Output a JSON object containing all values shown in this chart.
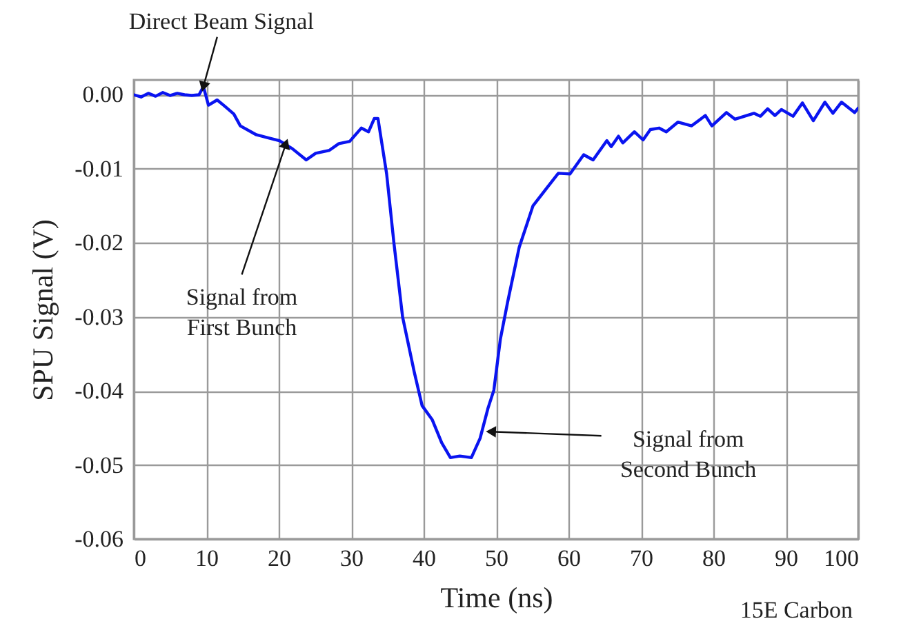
{
  "chart_data": {
    "type": "line",
    "xlabel": "Time (ns)",
    "ylabel": "SPU Signal (V)",
    "xlim": [
      0,
      100
    ],
    "ylim": [
      -0.06,
      0.002
    ],
    "xticks": [
      0,
      10,
      20,
      30,
      40,
      50,
      60,
      70,
      80,
      90,
      100
    ],
    "yticks": [
      {
        "value": 0,
        "label": "0.00"
      },
      {
        "value": -0.01,
        "label": "-0.01"
      },
      {
        "value": -0.02,
        "label": "-0.02"
      },
      {
        "value": -0.03,
        "label": "-0.03"
      },
      {
        "value": -0.04,
        "label": "-0.04"
      },
      {
        "value": -0.05,
        "label": "-0.05"
      },
      {
        "value": -0.06,
        "label": "-0.06"
      }
    ],
    "grid": true,
    "marker": "none",
    "line_style": "solid",
    "annotations": [
      {
        "text": "Direct Beam Signal",
        "x": 9.6,
        "y": 0.0011
      },
      {
        "text": "Signal from First Bunch",
        "x": 21,
        "y": -0.0066
      },
      {
        "text": "Signal from Second Bunch",
        "x": 49.3,
        "y": -0.0455
      },
      "15E Carbon"
    ],
    "series": [
      {
        "color": "#0a14f0",
        "x": [
          0,
          1,
          2,
          3,
          4,
          5,
          6,
          7,
          8,
          9,
          9.6,
          10.3,
          11.5,
          12.5,
          13.8,
          14.7,
          16.9,
          18.5,
          20.1,
          21.9,
          23.8,
          25.1,
          27,
          28.3,
          29.8,
          31.4,
          32.4,
          33.2,
          33.7,
          34.9,
          35.9,
          37.1,
          38.7,
          39.8,
          41.2,
          42.5,
          43.7,
          45,
          46.6,
          47.8,
          48.9,
          49.7,
          50.6,
          51.6,
          53.2,
          55.1,
          57,
          58.6,
          60.2,
          62.1,
          63.4,
          65.3,
          65.9,
          66.9,
          67.5,
          69.1,
          70.3,
          71.3,
          72.5,
          73.5,
          75.1,
          77,
          78.9,
          79.8,
          81.8,
          83,
          85.6,
          86.5,
          87.5,
          88.5,
          89.4,
          91,
          92.3,
          93.8,
          95.4,
          96.5,
          97.7,
          99.5,
          100
        ],
        "values": [
          0,
          -0.0003,
          0.0002,
          -0.0002,
          0.0003,
          -0.0001,
          0.0002,
          0,
          -0.0001,
          0,
          0.0011,
          -0.0014,
          -0.0007,
          -0.0015,
          -0.0026,
          -0.0042,
          -0.0054,
          -0.0058,
          -0.0062,
          -0.0073,
          -0.0088,
          -0.0079,
          -0.0075,
          -0.0066,
          -0.0063,
          -0.0045,
          -0.005,
          -0.0032,
          -0.0032,
          -0.0107,
          -0.02,
          -0.03,
          -0.0374,
          -0.042,
          -0.0439,
          -0.047,
          -0.049,
          -0.0488,
          -0.049,
          -0.0464,
          -0.0423,
          -0.0399,
          -0.033,
          -0.028,
          -0.0206,
          -0.015,
          -0.0126,
          -0.0106,
          -0.0107,
          -0.0081,
          -0.0088,
          -0.0062,
          -0.007,
          -0.0056,
          -0.0065,
          -0.005,
          -0.0061,
          -0.0047,
          -0.0045,
          -0.005,
          -0.0037,
          -0.0042,
          -0.0028,
          -0.0042,
          -0.0024,
          -0.0033,
          -0.0025,
          -0.0029,
          -0.0019,
          -0.0028,
          -0.002,
          -0.0029,
          -0.0011,
          -0.0035,
          -0.001,
          -0.0025,
          -0.001,
          -0.0024,
          -0.0018
        ]
      }
    ]
  }
}
